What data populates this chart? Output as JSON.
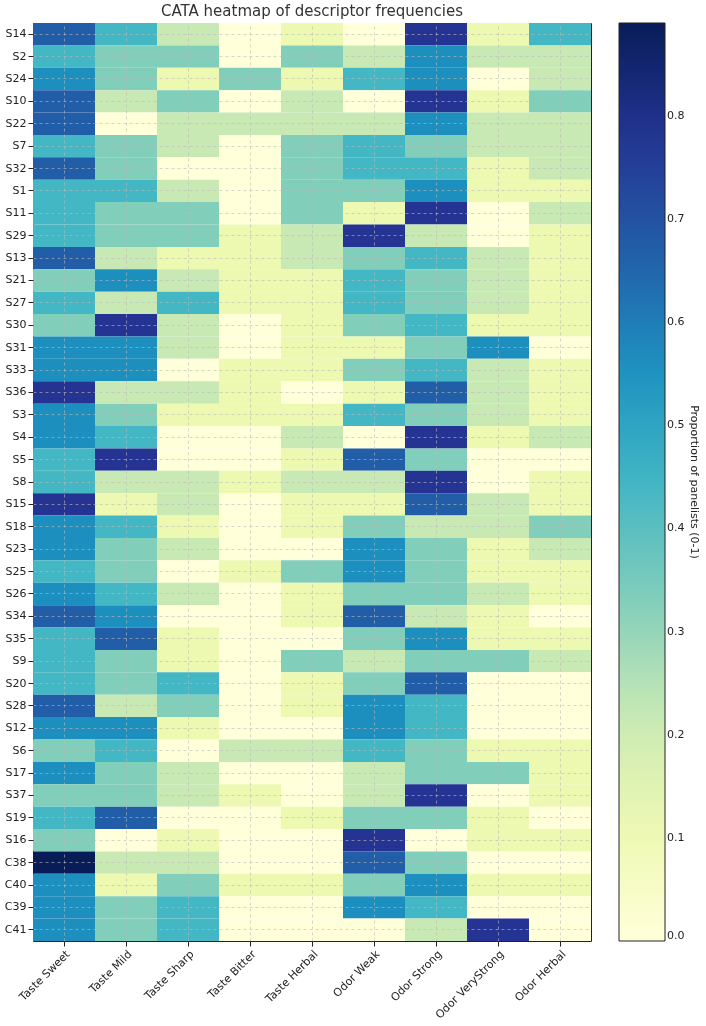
{
  "chart_data": {
    "type": "heatmap",
    "title": "CATA heatmap of descriptor frequencies",
    "clabel": "Proportion of panelists (0-1)",
    "categories": [
      "Taste Sweet",
      "Taste Mild",
      "Taste Sharp",
      "Taste Bitter",
      "Taste Herbal",
      "Odor Weak",
      "Odor Strong",
      "Odor VeryStrong",
      "Odor Herbal"
    ],
    "y_categories": [
      "S14",
      "S2",
      "S24",
      "S10",
      "S22",
      "S7",
      "S32",
      "S1",
      "S11",
      "S29",
      "S13",
      "S21",
      "S27",
      "S30",
      "S31",
      "S33",
      "S36",
      "S3",
      "S4",
      "S5",
      "S8",
      "S15",
      "S18",
      "S23",
      "S25",
      "S26",
      "S34",
      "S35",
      "S9",
      "S20",
      "S28",
      "S12",
      "S6",
      "S17",
      "S37",
      "S19",
      "S16",
      "C38",
      "C40",
      "C39",
      "C41"
    ],
    "cells": [
      [
        0.67,
        0.44,
        0.22,
        0,
        0.11,
        0,
        0.78,
        0.11,
        0.44
      ],
      [
        0.44,
        0.33,
        0.33,
        0,
        0.33,
        0.22,
        0.56,
        0.22,
        0.22
      ],
      [
        0.56,
        0.33,
        0.11,
        0.33,
        0.11,
        0.44,
        0.56,
        0,
        0.22
      ],
      [
        0.67,
        0.22,
        0.33,
        0,
        0.22,
        0,
        0.78,
        0.11,
        0.33
      ],
      [
        0.67,
        0,
        0.22,
        0.22,
        0.22,
        0.22,
        0.56,
        0.22,
        0.22
      ],
      [
        0.44,
        0.33,
        0.22,
        0,
        0.33,
        0.44,
        0.33,
        0.22,
        0.22
      ],
      [
        0.67,
        0.33,
        0,
        0,
        0.33,
        0.44,
        0.44,
        0.11,
        0.22
      ],
      [
        0.44,
        0.44,
        0.22,
        0,
        0.33,
        0.33,
        0.56,
        0.11,
        0.11
      ],
      [
        0.44,
        0.33,
        0.33,
        0,
        0.33,
        0.11,
        0.78,
        0,
        0.22
      ],
      [
        0.44,
        0.33,
        0.33,
        0.11,
        0.22,
        0.78,
        0.22,
        0,
        0.11
      ],
      [
        0.67,
        0.22,
        0.11,
        0.11,
        0.22,
        0.33,
        0.44,
        0.22,
        0.11
      ],
      [
        0.33,
        0.56,
        0.22,
        0.11,
        0.11,
        0.44,
        0.33,
        0.22,
        0.11
      ],
      [
        0.44,
        0.22,
        0.44,
        0.11,
        0.11,
        0.44,
        0.33,
        0.22,
        0.11
      ],
      [
        0.33,
        0.78,
        0.22,
        0,
        0.11,
        0.33,
        0.44,
        0.11,
        0.11
      ],
      [
        0.56,
        0.56,
        0.22,
        0,
        0.11,
        0.11,
        0.33,
        0.56,
        0
      ],
      [
        0.56,
        0.56,
        0,
        0.11,
        0.11,
        0.33,
        0.44,
        0.22,
        0.11
      ],
      [
        0.78,
        0.22,
        0.22,
        0.11,
        0,
        0.11,
        0.67,
        0.22,
        0.11
      ],
      [
        0.56,
        0.33,
        0.11,
        0.11,
        0.11,
        0.44,
        0.33,
        0.22,
        0.11
      ],
      [
        0.56,
        0.44,
        0,
        0,
        0.22,
        0,
        0.78,
        0.11,
        0.22
      ],
      [
        0.44,
        0.78,
        0,
        0,
        0.11,
        0.67,
        0.33,
        0,
        0
      ],
      [
        0.44,
        0.22,
        0.22,
        0.11,
        0.22,
        0.22,
        0.78,
        0,
        0.11
      ],
      [
        0.78,
        0.11,
        0.22,
        0,
        0.11,
        0.11,
        0.67,
        0.22,
        0.11
      ],
      [
        0.56,
        0.44,
        0.11,
        0,
        0.11,
        0.33,
        0.22,
        0.22,
        0.33
      ],
      [
        0.56,
        0.33,
        0.22,
        0,
        0,
        0.56,
        0.33,
        0.11,
        0.22
      ],
      [
        0.44,
        0.33,
        0,
        0.11,
        0.33,
        0.56,
        0.33,
        0.11,
        0.11
      ],
      [
        0.56,
        0.44,
        0.22,
        0,
        0.11,
        0.33,
        0.33,
        0.22,
        0.11
      ],
      [
        0.67,
        0.56,
        0,
        0,
        0.11,
        0.67,
        0.22,
        0.11,
        0
      ],
      [
        0.44,
        0.67,
        0.11,
        0,
        0,
        0.33,
        0.56,
        0.11,
        0.11
      ],
      [
        0.44,
        0.33,
        0.11,
        0,
        0.33,
        0.22,
        0.33,
        0.33,
        0.22
      ],
      [
        0.44,
        0.33,
        0.44,
        0,
        0.11,
        0.33,
        0.67,
        0,
        0
      ],
      [
        0.67,
        0.22,
        0.33,
        0,
        0.11,
        0.56,
        0.44,
        0,
        0
      ],
      [
        0.56,
        0.56,
        0.11,
        0,
        0,
        0.56,
        0.44,
        0,
        0
      ],
      [
        0.33,
        0.44,
        0,
        0.22,
        0.22,
        0.44,
        0.33,
        0.11,
        0.11
      ],
      [
        0.56,
        0.33,
        0.22,
        0,
        0,
        0.22,
        0.33,
        0.33,
        0.11
      ],
      [
        0.33,
        0.33,
        0.22,
        0.11,
        0,
        0.22,
        0.78,
        0,
        0.11
      ],
      [
        0.44,
        0.67,
        0,
        0,
        0.11,
        0.33,
        0.33,
        0.11,
        0
      ],
      [
        0.33,
        0,
        0.11,
        0,
        0,
        0.78,
        0,
        0.11,
        0.11
      ],
      [
        0.89,
        0.22,
        0.22,
        0,
        0,
        0.67,
        0.33,
        0,
        0
      ],
      [
        0.56,
        0.11,
        0.33,
        0.11,
        0.11,
        0.33,
        0.56,
        0.11,
        0.11
      ],
      [
        0.56,
        0.33,
        0.44,
        0,
        0,
        0.56,
        0.44,
        0,
        0
      ],
      [
        0.56,
        0.33,
        0.44,
        0,
        0,
        0,
        0.22,
        0.78,
        0
      ]
    ],
    "clim": [
      0,
      0.89
    ],
    "cticks": [
      {
        "value": 0,
        "label": "0.0"
      },
      {
        "value": 0.1,
        "label": "0.1"
      },
      {
        "value": 0.2,
        "label": "0.2"
      },
      {
        "value": 0.3,
        "label": "0.3"
      },
      {
        "value": 0.4,
        "label": "0.4"
      },
      {
        "value": 0.5,
        "label": "0.5"
      },
      {
        "value": 0.6,
        "label": "0.6"
      },
      {
        "value": 0.7,
        "label": "0.7"
      },
      {
        "value": 0.8,
        "label": "0.8"
      }
    ],
    "grid": true
  }
}
